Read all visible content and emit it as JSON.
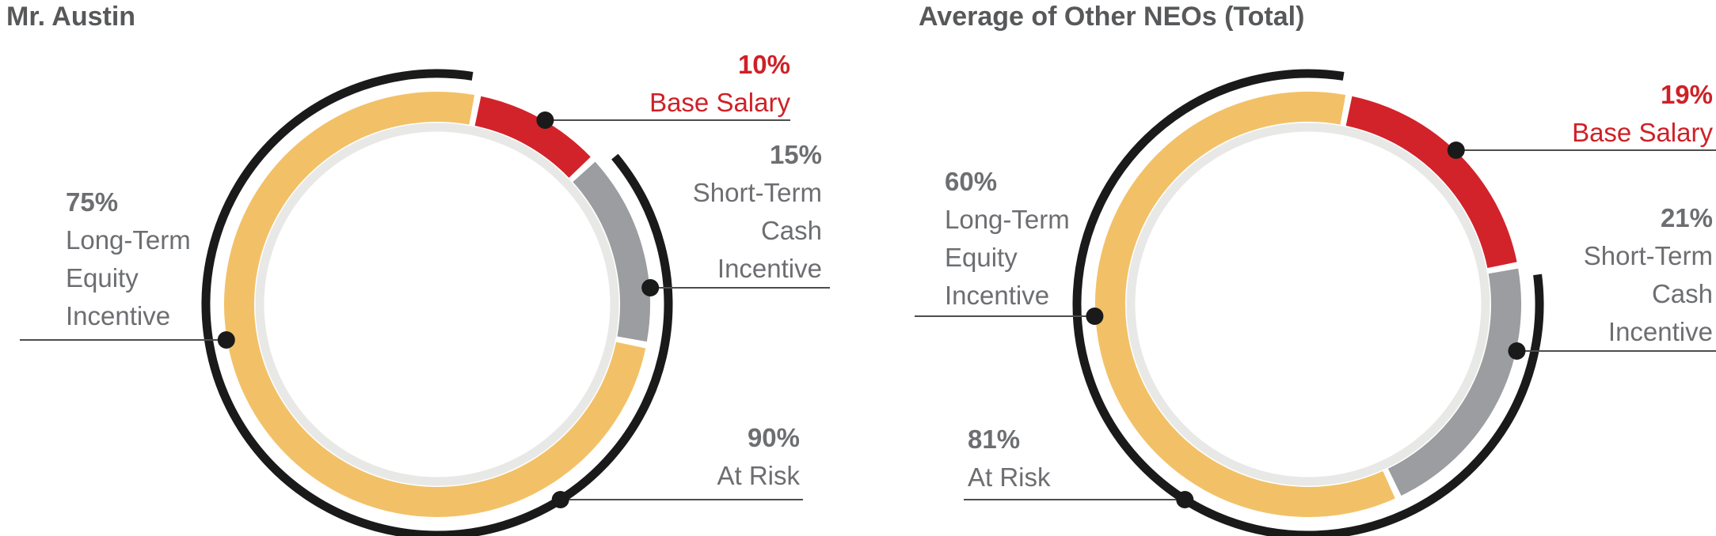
{
  "page": {
    "background": "#ffffff"
  },
  "palette": {
    "base_salary_red": "#D2232A",
    "short_term_gray": "#9B9DA0",
    "long_term_orange": "#F2C167",
    "inner_track_gray": "#E8E8E7",
    "at_risk_black": "#1A1A1A",
    "label_text_gray": "#6D6E71",
    "label_text_red": "#CE2127",
    "title_text": "#57585A",
    "leader_line": "#4D4D4D"
  },
  "charts": [
    {
      "title": "Mr. Austin",
      "labels": {
        "base_salary": {
          "lines": [
            "10%",
            "Base Salary"
          ]
        },
        "short_term": {
          "lines": [
            "15%",
            "Short-Term",
            "Cash",
            "Incentive"
          ]
        },
        "long_term": {
          "lines": [
            "75%",
            "Long-Term",
            "Equity",
            "Incentive"
          ]
        },
        "at_risk": {
          "lines": [
            "90%",
            "At Risk"
          ]
        }
      }
    },
    {
      "title": "Average of Other NEOs (Total)",
      "labels": {
        "base_salary": {
          "lines": [
            "19%",
            "Base Salary"
          ]
        },
        "short_term": {
          "lines": [
            "21%",
            "Short-Term",
            "Cash",
            "Incentive"
          ]
        },
        "long_term": {
          "lines": [
            "60%",
            "Long-Term",
            "Equity",
            "Incentive"
          ]
        },
        "at_risk": {
          "lines": [
            "81%",
            "At Risk"
          ]
        }
      }
    }
  ],
  "chart_data": [
    {
      "type": "pie",
      "variant": "donut",
      "title": "Mr. Austin",
      "unit": "%",
      "rotation_deg": 11,
      "slices": [
        {
          "label": "Base Salary",
          "value": 10,
          "color": "#D2232A"
        },
        {
          "label": "Short-Term Cash Incentive",
          "value": 15,
          "color": "#9B9DA0"
        },
        {
          "label": "Long-Term Equity Incentive",
          "value": 75,
          "color": "#F2C167"
        }
      ],
      "annotations": [
        {
          "label": "At Risk",
          "value": 90,
          "style": "outer black arc spanning Short-Term + Long-Term slices"
        }
      ],
      "legend": "none"
    },
    {
      "type": "pie",
      "variant": "donut",
      "title": "Average of Other NEOs (Total)",
      "unit": "%",
      "rotation_deg": 11,
      "slices": [
        {
          "label": "Base Salary",
          "value": 19,
          "color": "#D2232A"
        },
        {
          "label": "Short-Term Cash Incentive",
          "value": 21,
          "color": "#9B9DA0"
        },
        {
          "label": "Long-Term Equity Incentive",
          "value": 60,
          "color": "#F2C167"
        }
      ],
      "annotations": [
        {
          "label": "At Risk",
          "value": 81,
          "style": "outer black arc spanning Short-Term + Long-Term slices"
        }
      ],
      "legend": "none"
    }
  ]
}
